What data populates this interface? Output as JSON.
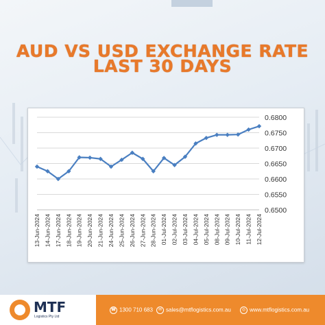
{
  "title_line1": "AUD VS USD EXCHANGE RATE",
  "title_line2": "LAST 30 DAYS",
  "chart_data": {
    "type": "line",
    "x": [
      "13-Jun-2024",
      "14-Jun-2024",
      "17-Jun-2024",
      "18-Jun-2024",
      "19-Jun-2024",
      "20-Jun-2024",
      "21-Jun-2024",
      "24-Jun-2024",
      "25-Jun-2024",
      "26-Jun-2024",
      "27-Jun-2024",
      "28-Jun-2024",
      "01-Jul-2024",
      "02-Jul-2024",
      "03-Jul-2024",
      "04-Jul-2024",
      "05-Jul-2024",
      "08-Jul-2024",
      "09-Jul-2024",
      "10-Jul-2024",
      "11-Jul-2024",
      "12-Jul-2024"
    ],
    "y": [
      0.664,
      0.6625,
      0.66,
      0.6625,
      0.667,
      0.6669,
      0.6665,
      0.664,
      0.6662,
      0.6685,
      0.6665,
      0.6625,
      0.6668,
      0.6645,
      0.6672,
      0.6715,
      0.6733,
      0.6743,
      0.6743,
      0.6744,
      0.676,
      0.6771
    ],
    "ylim": [
      0.65,
      0.68
    ],
    "yticks": [
      "0.6500",
      "0.6550",
      "0.6600",
      "0.6650",
      "0.6700",
      "0.6750",
      "0.6800"
    ],
    "grid": true,
    "color": "#4a7fc1"
  },
  "footer": {
    "logo_name": "MTF",
    "logo_sub": "Logistics Pty Ltd",
    "phone": "1300 710 683",
    "email": "sales@mtflogistics.com.au",
    "website": "www.mtflogistics.com.au"
  }
}
